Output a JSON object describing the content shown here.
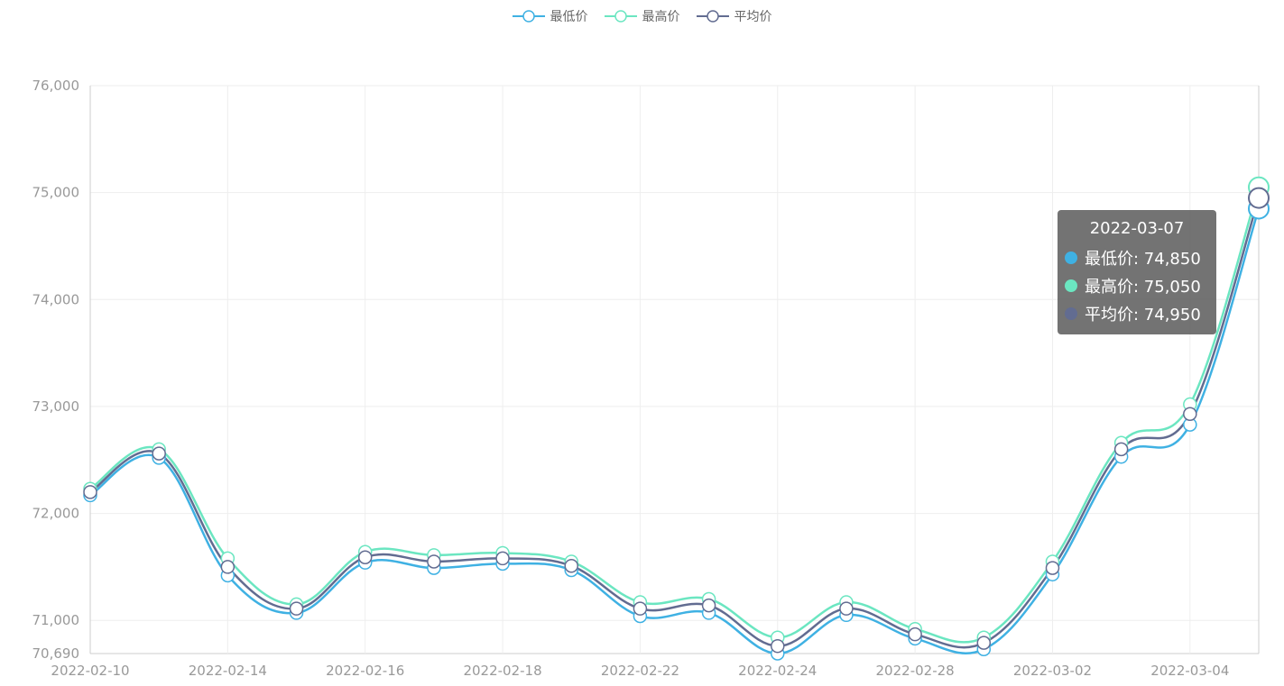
{
  "chart_data": {
    "type": "line",
    "x": [
      "2022-02-10",
      "2022-02-11",
      "2022-02-14",
      "2022-02-15",
      "2022-02-16",
      "2022-02-17",
      "2022-02-18",
      "2022-02-21",
      "2022-02-22",
      "2022-02-23",
      "2022-02-24",
      "2022-02-25",
      "2022-02-28",
      "2022-03-01",
      "2022-03-02",
      "2022-03-03",
      "2022-03-04",
      "2022-03-07"
    ],
    "x_tick_labels": [
      "2022-02-10",
      "2022-02-14",
      "2022-02-16",
      "2022-02-18",
      "2022-02-22",
      "2022-02-24",
      "2022-02-28",
      "2022-03-02",
      "2022-03-04"
    ],
    "y_ticks": [
      70690,
      71000,
      72000,
      73000,
      74000,
      75000,
      76000
    ],
    "y_tick_labels": [
      "70,690",
      "71,000",
      "72,000",
      "73,000",
      "74,000",
      "75,000",
      "76,000"
    ],
    "ylim": [
      70690,
      76000
    ],
    "grid": true,
    "series": [
      {
        "name": "最低价",
        "color": "#3fb1e3",
        "values": [
          72170,
          72520,
          71420,
          71070,
          71540,
          71490,
          71530,
          71470,
          71040,
          71070,
          70690,
          71050,
          70830,
          70730,
          71430,
          72530,
          72830,
          74850
        ]
      },
      {
        "name": "最高价",
        "color": "#6be6c1",
        "values": [
          72230,
          72600,
          71580,
          71150,
          71640,
          71610,
          71630,
          71550,
          71170,
          71200,
          70840,
          71170,
          70920,
          70840,
          71550,
          72660,
          73020,
          75050
        ]
      },
      {
        "name": "平均价",
        "color": "#626c91",
        "values": [
          72200,
          72560,
          71500,
          71110,
          71590,
          71550,
          71580,
          71510,
          71110,
          71140,
          70760,
          71110,
          70870,
          70790,
          71490,
          72600,
          72930,
          74950
        ]
      }
    ]
  },
  "tooltip": {
    "title": "2022-03-07",
    "rows": [
      {
        "label": "最低价: 74,850",
        "color": "#3fb1e3"
      },
      {
        "label": "最高价: 75,050",
        "color": "#6be6c1"
      },
      {
        "label": "平均价: 74,950",
        "color": "#626c91"
      }
    ]
  }
}
